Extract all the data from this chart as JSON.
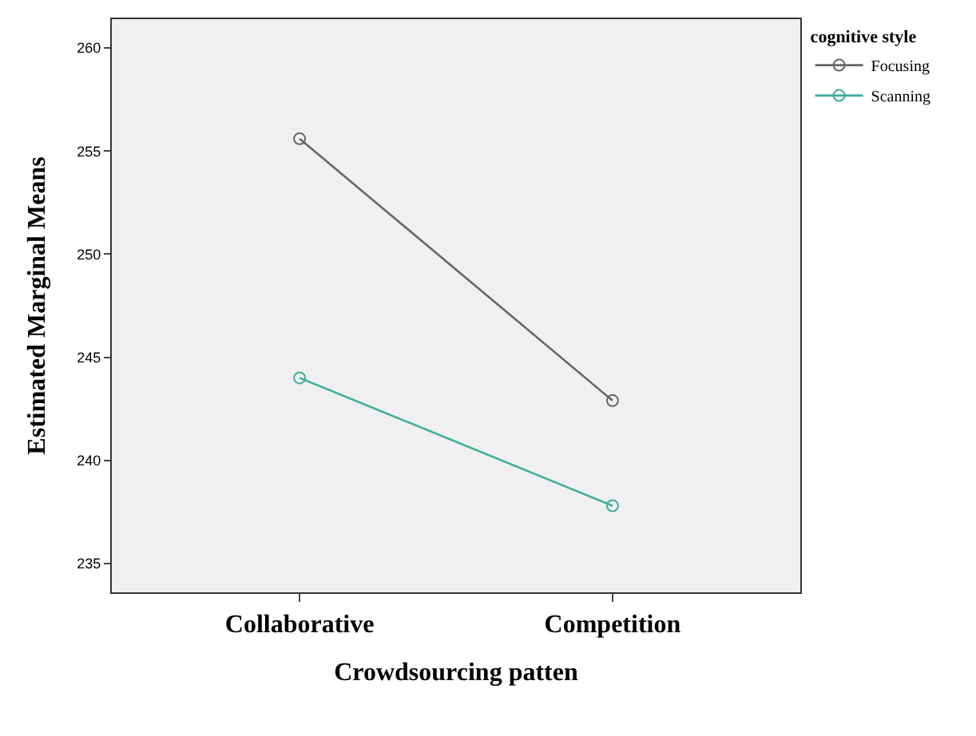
{
  "chart_data": {
    "type": "line",
    "xlabel": "Crowdsourcing patten",
    "ylabel": "Estimated Marginal Means",
    "legend_title": "cognitive style",
    "categories": [
      "Collaborative",
      "Competition"
    ],
    "series": [
      {
        "name": "Focusing",
        "color": "#666666",
        "values": [
          255.6,
          242.9
        ]
      },
      {
        "name": "Scanning",
        "color": "#3fae9a",
        "values": [
          244.0,
          237.8
        ]
      }
    ],
    "ylim": [
      233.6,
      261.4
    ],
    "yticks": [
      235,
      240,
      245,
      250,
      255,
      260
    ],
    "marker": "circle",
    "grid": false,
    "legend": "top right"
  }
}
